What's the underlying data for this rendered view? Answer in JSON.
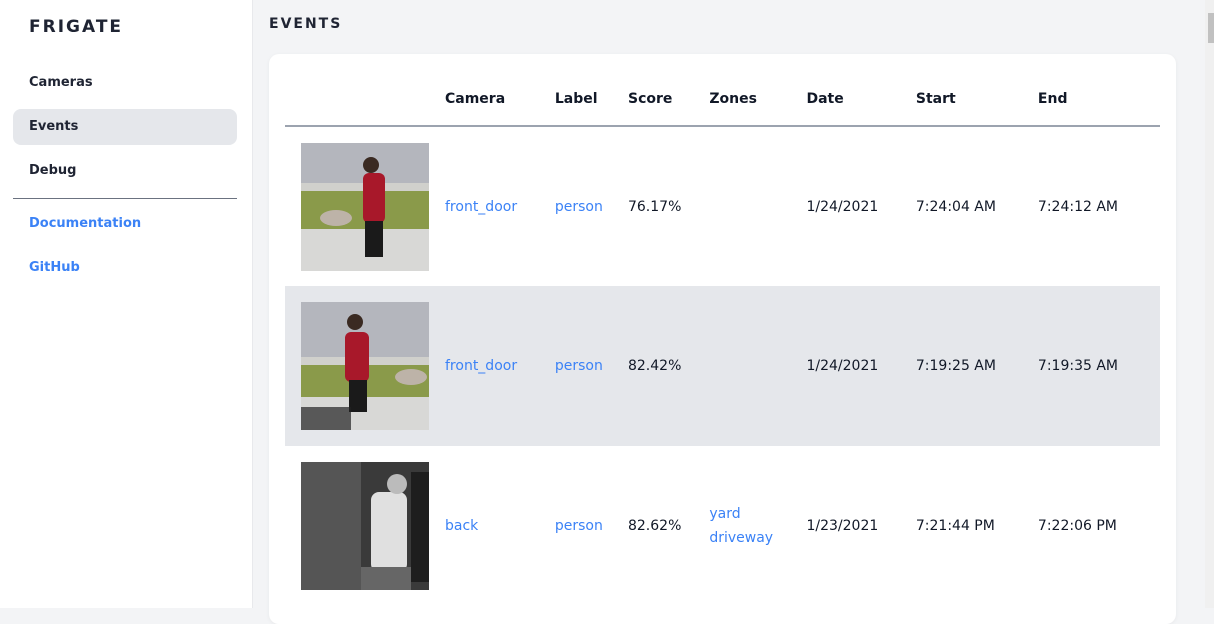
{
  "sidebar": {
    "brand": "FRIGATE",
    "items": [
      {
        "label": "Cameras"
      },
      {
        "label": "Events",
        "active": true
      },
      {
        "label": "Debug"
      }
    ],
    "links": [
      {
        "label": "Documentation"
      },
      {
        "label": "GitHub"
      }
    ]
  },
  "page": {
    "title": "EVENTS"
  },
  "table": {
    "headers": [
      "",
      "Camera",
      "Label",
      "Score",
      "Zones",
      "Date",
      "Start",
      "End"
    ],
    "rows": [
      {
        "camera": "front_door",
        "label": "person",
        "score": "76.17%",
        "zones": [],
        "date": "1/24/2021",
        "start": "7:24:04 AM",
        "end": "7:24:12 AM"
      },
      {
        "camera": "front_door",
        "label": "person",
        "score": "82.42%",
        "zones": [],
        "date": "1/24/2021",
        "start": "7:19:25 AM",
        "end": "7:19:35 AM"
      },
      {
        "camera": "back",
        "label": "person",
        "score": "82.62%",
        "zones": [
          "yard",
          "driveway"
        ],
        "date": "1/23/2021",
        "start": "7:21:44 PM",
        "end": "7:22:06 PM"
      }
    ]
  },
  "colors": {
    "accent": "#3b82f6",
    "active_bg": "#e5e7eb"
  }
}
